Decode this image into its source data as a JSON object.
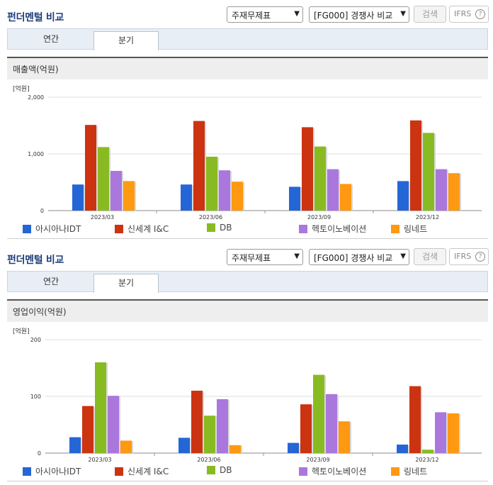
{
  "colors": [
    "#2566d6",
    "#cc3311",
    "#88bb22",
    "#aa77dd",
    "#ff9911"
  ],
  "legend": [
    "아시아나IDT",
    "신세계 I&C",
    "DB",
    "헥토이노베이션",
    "링네트"
  ],
  "panels": [
    {
      "title": "펀더멘털 비교",
      "select1": "주재무제표",
      "select2": "[FG000] 경쟁사 비교",
      "search_label": "검색",
      "ifrs_label": "IFRS",
      "help_icon": "?",
      "tabs": [
        "연간",
        "분기"
      ],
      "section_title": "매출액(억원)",
      "unit": "[억원]",
      "chart_data": {
        "type": "bar",
        "categories": [
          "2023/03",
          "2023/06",
          "2023/09",
          "2023/12"
        ],
        "yticks": [
          "2,000",
          "1,000",
          "0"
        ],
        "ylim": [
          0,
          2000
        ],
        "series": [
          {
            "name": "아시아나IDT",
            "values": [
              460,
              460,
              420,
              520
            ]
          },
          {
            "name": "신세계 I&C",
            "values": [
              1510,
              1580,
              1470,
              1590
            ]
          },
          {
            "name": "DB",
            "values": [
              1120,
              950,
              1130,
              1370
            ]
          },
          {
            "name": "헥토이노베이션",
            "values": [
              700,
              710,
              730,
              730
            ]
          },
          {
            "name": "링네트",
            "values": [
              520,
              510,
              470,
              660
            ]
          }
        ]
      }
    },
    {
      "title": "펀더멘털 비교",
      "select1": "주재무제표",
      "select2": "[FG000] 경쟁사 비교",
      "search_label": "검색",
      "ifrs_label": "IFRS",
      "help_icon": "?",
      "tabs": [
        "연간",
        "분기"
      ],
      "section_title": "영업이익(억원)",
      "unit": "[억원]",
      "chart_data": {
        "type": "bar",
        "categories": [
          "2023/03",
          "2023/06",
          "2023/09",
          "2023/12"
        ],
        "yticks": [
          "200",
          "100",
          "0"
        ],
        "ylim": [
          0,
          200
        ],
        "series": [
          {
            "name": "아시아나IDT",
            "values": [
              28,
              27,
              18,
              15
            ]
          },
          {
            "name": "신세계 I&C",
            "values": [
              83,
              110,
              86,
              118
            ]
          },
          {
            "name": "DB",
            "values": [
              160,
              66,
              138,
              6
            ]
          },
          {
            "name": "헥토이노베이션",
            "values": [
              101,
              95,
              104,
              72
            ]
          },
          {
            "name": "링네트",
            "values": [
              22,
              14,
              56,
              70
            ]
          }
        ]
      }
    }
  ]
}
